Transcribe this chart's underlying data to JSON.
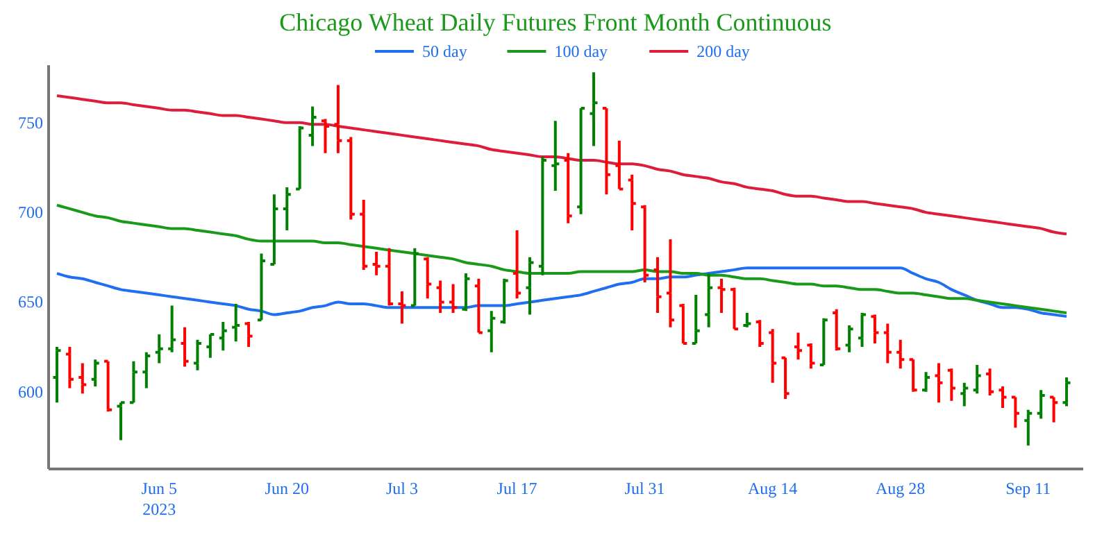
{
  "chart_data": {
    "type": "candlestick",
    "title": "Chicago Wheat Daily Futures Front Month Continuous",
    "categories": [
      null,
      null,
      null,
      null,
      null,
      null,
      null,
      null,
      "Jun 5\n2023",
      null,
      null,
      null,
      null,
      null,
      null,
      null,
      null,
      null,
      "Jun 20",
      null,
      null,
      null,
      null,
      null,
      null,
      null,
      null,
      "Jul 3",
      null,
      null,
      null,
      null,
      null,
      null,
      null,
      null,
      "Jul 17",
      null,
      null,
      null,
      null,
      null,
      null,
      null,
      null,
      null,
      "Jul 31",
      null,
      null,
      null,
      null,
      null,
      null,
      null,
      null,
      null,
      "Aug 14",
      null,
      null,
      null,
      null,
      null,
      null,
      null,
      null,
      null,
      "Aug 28",
      null,
      null,
      null,
      null,
      null,
      null,
      null,
      null,
      null,
      "Sep 11",
      null,
      null,
      null
    ],
    "ohlc": [
      [
        608,
        625,
        594,
        623
      ],
      [
        621,
        625,
        602,
        607
      ],
      [
        608,
        616,
        599,
        604
      ],
      [
        607,
        618,
        603,
        616
      ],
      [
        617,
        617,
        589,
        590
      ],
      [
        592,
        594,
        573,
        594
      ],
      [
        594,
        617,
        594,
        611
      ],
      [
        611,
        622,
        602,
        620
      ],
      [
        622,
        632,
        616,
        624
      ],
      [
        624,
        648,
        622,
        629
      ],
      [
        627,
        636,
        614,
        617
      ],
      [
        616,
        629,
        612,
        627
      ],
      [
        625,
        632,
        619,
        632
      ],
      [
        630,
        639,
        623,
        634
      ],
      [
        636,
        649,
        628,
        637
      ],
      [
        638,
        639,
        625,
        631
      ],
      [
        640,
        677,
        640,
        673
      ],
      [
        671,
        710,
        671,
        702
      ],
      [
        702,
        714,
        690,
        710
      ],
      [
        713,
        748,
        713,
        747
      ],
      [
        743,
        759,
        737,
        753
      ],
      [
        751,
        752,
        733,
        748
      ],
      [
        749,
        771,
        733,
        740
      ],
      [
        740,
        742,
        696,
        699
      ],
      [
        699,
        707,
        668,
        670
      ],
      [
        671,
        678,
        665,
        670
      ],
      [
        670,
        680,
        648,
        649
      ],
      [
        649,
        656,
        638,
        648
      ],
      [
        648,
        680,
        648,
        677
      ],
      [
        674,
        675,
        652,
        660
      ],
      [
        658,
        662,
        644,
        650
      ],
      [
        650,
        660,
        644,
        647
      ],
      [
        646,
        666,
        645,
        663
      ],
      [
        659,
        663,
        633,
        633
      ],
      [
        634,
        645,
        622,
        641
      ],
      [
        639,
        663,
        638,
        662
      ],
      [
        666,
        690,
        652,
        655
      ],
      [
        658,
        675,
        643,
        672
      ],
      [
        670,
        731,
        665,
        729
      ],
      [
        726,
        751,
        712,
        727
      ],
      [
        729,
        733,
        694,
        698
      ],
      [
        703,
        758,
        699,
        758
      ],
      [
        755,
        778,
        737,
        761
      ],
      [
        758,
        758,
        710,
        721
      ],
      [
        726,
        740,
        713,
        713
      ],
      [
        718,
        721,
        690,
        705
      ],
      [
        703,
        704,
        661,
        665
      ],
      [
        668,
        675,
        644,
        653
      ],
      [
        655,
        685,
        636,
        640
      ],
      [
        648,
        649,
        627,
        627
      ],
      [
        627,
        654,
        627,
        634
      ],
      [
        643,
        666,
        636,
        658
      ],
      [
        658,
        663,
        644,
        657
      ],
      [
        657,
        658,
        635,
        635
      ],
      [
        637,
        644,
        636,
        638
      ],
      [
        639,
        640,
        625,
        627
      ],
      [
        633,
        635,
        605,
        616
      ],
      [
        619,
        619,
        596,
        599
      ],
      [
        625,
        633,
        618,
        623
      ],
      [
        626,
        627,
        613,
        616
      ],
      [
        615,
        641,
        615,
        640
      ],
      [
        644,
        646,
        623,
        624
      ],
      [
        626,
        637,
        622,
        635
      ],
      [
        630,
        644,
        625,
        643
      ],
      [
        642,
        643,
        627,
        633
      ],
      [
        633,
        638,
        616,
        622
      ],
      [
        622,
        629,
        613,
        618
      ],
      [
        618,
        618,
        600,
        601
      ],
      [
        601,
        611,
        600,
        608
      ],
      [
        609,
        616,
        594,
        605
      ],
      [
        612,
        613,
        595,
        602
      ],
      [
        599,
        605,
        592,
        602
      ],
      [
        601,
        615,
        599,
        609
      ],
      [
        610,
        613,
        598,
        600
      ],
      [
        601,
        603,
        591,
        597
      ],
      [
        597,
        597,
        580,
        588
      ],
      [
        584,
        590,
        570,
        588
      ],
      [
        588,
        601,
        585,
        598
      ],
      [
        597,
        597,
        583,
        594
      ],
      [
        594,
        608,
        592,
        605
      ]
    ],
    "colors": [
      "#008000",
      "#ff0000",
      "#ff0000",
      "#008000",
      "#ff0000",
      "#008000",
      "#008000",
      "#008000",
      "#008000",
      "#008000",
      "#ff0000",
      "#008000",
      "#008000",
      "#008000",
      "#008000",
      "#ff0000",
      "#008000",
      "#008000",
      "#008000",
      "#008000",
      "#008000",
      "#ff0000",
      "#ff0000",
      "#ff0000",
      "#ff0000",
      "#ff0000",
      "#ff0000",
      "#ff0000",
      "#008000",
      "#ff0000",
      "#ff0000",
      "#ff0000",
      "#008000",
      "#ff0000",
      "#008000",
      "#008000",
      "#ff0000",
      "#008000",
      "#008000",
      "#008000",
      "#ff0000",
      "#008000",
      "#008000",
      "#ff0000",
      "#ff0000",
      "#ff0000",
      "#ff0000",
      "#ff0000",
      "#ff0000",
      "#ff0000",
      "#008000",
      "#008000",
      "#ff0000",
      "#ff0000",
      "#008000",
      "#ff0000",
      "#ff0000",
      "#ff0000",
      "#ff0000",
      "#ff0000",
      "#008000",
      "#ff0000",
      "#008000",
      "#008000",
      "#ff0000",
      "#ff0000",
      "#ff0000",
      "#ff0000",
      "#008000",
      "#ff0000",
      "#ff0000",
      "#008000",
      "#008000",
      "#ff0000",
      "#ff0000",
      "#ff0000",
      "#008000",
      "#008000",
      "#ff0000",
      "#008000"
    ],
    "series": [
      {
        "type": "line",
        "name": "50 day",
        "color": "#1f6ff0",
        "values": [
          666,
          664,
          663,
          661,
          659,
          657,
          656,
          655,
          654,
          653,
          652,
          651,
          650,
          649,
          648,
          646,
          645,
          643,
          644,
          645,
          647,
          648,
          650,
          649,
          649,
          648,
          647,
          647,
          647,
          647,
          647,
          647,
          647,
          648,
          648,
          648,
          649,
          650,
          651,
          652,
          653,
          654,
          656,
          658,
          660,
          661,
          663,
          663,
          664,
          664,
          665,
          666,
          667,
          668,
          669,
          669,
          669,
          669,
          669,
          669,
          669,
          669,
          669,
          669,
          669,
          669,
          669,
          666,
          663,
          661,
          657,
          654,
          651,
          649,
          647,
          647,
          646,
          644,
          643,
          642
        ]
      },
      {
        "type": "line",
        "name": "100 day",
        "color": "#1a9a1a",
        "values": [
          704,
          702,
          700,
          698,
          697,
          695,
          694,
          693,
          692,
          691,
          691,
          690,
          689,
          688,
          687,
          685,
          684,
          684,
          684,
          684,
          684,
          683,
          683,
          682,
          681,
          680,
          679,
          678,
          677,
          676,
          675,
          674,
          672,
          671,
          670,
          668,
          667,
          666,
          666,
          666,
          666,
          667,
          667,
          667,
          667,
          667,
          668,
          667,
          667,
          666,
          666,
          665,
          665,
          664,
          663,
          663,
          662,
          661,
          660,
          660,
          659,
          659,
          658,
          657,
          657,
          656,
          655,
          655,
          654,
          653,
          652,
          652,
          651,
          650,
          649,
          648,
          647,
          646,
          645,
          644
        ]
      },
      {
        "type": "line",
        "name": "200 day",
        "color": "#dc1e3c",
        "values": [
          765,
          764,
          763,
          762,
          761,
          761,
          760,
          759,
          758,
          757,
          757,
          756,
          755,
          754,
          754,
          753,
          752,
          751,
          750,
          750,
          749,
          749,
          748,
          747,
          746,
          745,
          744,
          743,
          742,
          741,
          740,
          739,
          738,
          737,
          735,
          734,
          733,
          732,
          731,
          731,
          730,
          729,
          729,
          728,
          727,
          727,
          726,
          724,
          723,
          721,
          720,
          719,
          717,
          716,
          714,
          713,
          712,
          710,
          709,
          709,
          708,
          707,
          706,
          706,
          705,
          704,
          703,
          702,
          700,
          699,
          698,
          697,
          696,
          695,
          694,
          693,
          692,
          691,
          689,
          688
        ]
      }
    ],
    "ylim": [
      557,
      782
    ],
    "yticks": [
      600,
      650,
      700,
      750
    ],
    "legend": "top"
  }
}
